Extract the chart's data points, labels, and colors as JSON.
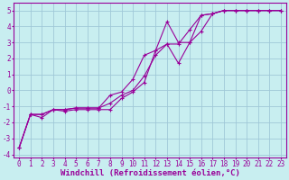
{
  "bg_color": "#c8eef0",
  "line_color": "#990099",
  "grid_color": "#a0c8d8",
  "xlabel": "Windchill (Refroidissement éolien,°C)",
  "xlabel_fontsize": 6.5,
  "tick_fontsize": 5.5,
  "xlim": [
    -0.5,
    23.5
  ],
  "ylim": [
    -4.2,
    5.5
  ],
  "yticks": [
    -4,
    -3,
    -2,
    -1,
    0,
    1,
    2,
    3,
    4,
    5
  ],
  "xticks": [
    0,
    1,
    2,
    3,
    4,
    5,
    6,
    7,
    8,
    9,
    10,
    11,
    12,
    13,
    14,
    15,
    16,
    17,
    18,
    19,
    20,
    21,
    22,
    23
  ],
  "line1_x": [
    0,
    1,
    2,
    3,
    4,
    5,
    6,
    7,
    8,
    9,
    10,
    11,
    12,
    13,
    14,
    15,
    16,
    17,
    18,
    19,
    20,
    21,
    22,
    23
  ],
  "line1_y": [
    -3.6,
    -1.5,
    -1.5,
    -1.2,
    -1.3,
    -1.2,
    -1.2,
    -1.2,
    -1.2,
    -0.5,
    -0.1,
    0.5,
    2.5,
    2.9,
    1.7,
    3.0,
    3.7,
    4.8,
    5.0,
    5.0,
    5.0,
    5.0,
    5.0,
    5.0
  ],
  "line2_x": [
    0,
    1,
    2,
    3,
    4,
    5,
    6,
    7,
    8,
    9,
    10,
    11,
    12,
    13,
    14,
    15,
    16,
    17,
    18,
    19,
    20,
    21,
    22,
    23
  ],
  "line2_y": [
    -3.6,
    -1.5,
    -1.5,
    -1.2,
    -1.2,
    -1.1,
    -1.1,
    -1.1,
    -0.8,
    -0.3,
    -0.0,
    0.9,
    2.2,
    2.9,
    2.9,
    3.8,
    4.7,
    4.8,
    5.0,
    5.0,
    5.0,
    5.0,
    5.0,
    5.0
  ],
  "line3_x": [
    0,
    1,
    2,
    3,
    4,
    5,
    6,
    7,
    8,
    9,
    10,
    11,
    12,
    13,
    14,
    15,
    16,
    17,
    18,
    19,
    20,
    21,
    22,
    23
  ],
  "line3_y": [
    -3.6,
    -1.5,
    -1.7,
    -1.2,
    -1.2,
    -1.1,
    -1.1,
    -1.1,
    -0.3,
    -0.1,
    0.7,
    2.2,
    2.5,
    4.3,
    3.0,
    3.0,
    4.7,
    4.8,
    5.0,
    5.0,
    5.0,
    5.0,
    5.0,
    5.0
  ]
}
